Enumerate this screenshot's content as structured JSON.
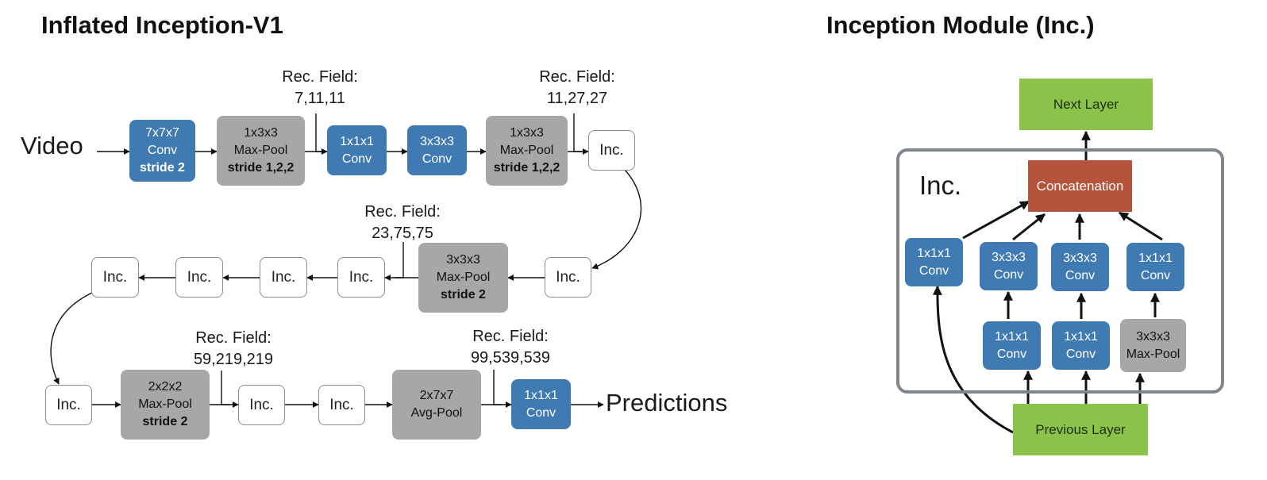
{
  "left": {
    "title": "Inflated Inception-V1",
    "input_label": "Video",
    "output_label": "Predictions",
    "row1": {
      "conv7": [
        "7x7x7",
        "Conv",
        "stride 2"
      ],
      "pool1": [
        "1x3x3",
        "Max-Pool",
        "stride 1,2,2"
      ],
      "conv1": [
        "1x1x1",
        "Conv"
      ],
      "conv3": [
        "3x3x3",
        "Conv"
      ],
      "pool2": [
        "1x3x3",
        "Max-Pool",
        "stride 1,2,2"
      ],
      "inc": "Inc."
    },
    "row2": {
      "inc_right": "Inc.",
      "pool3": [
        "3x3x3",
        "Max-Pool",
        "stride 2"
      ],
      "inc_chain": [
        "Inc.",
        "Inc.",
        "Inc.",
        "Inc."
      ]
    },
    "row3": {
      "inc_left": "Inc.",
      "pool4": [
        "2x2x2",
        "Max-Pool",
        "stride 2"
      ],
      "inc_a": "Inc.",
      "inc_b": "Inc.",
      "avgpool": [
        "2x7x7",
        "Avg-Pool"
      ],
      "conv_final": [
        "1x1x1",
        "Conv"
      ]
    },
    "rec_fields": {
      "rf1": [
        "Rec. Field:",
        "7,11,11"
      ],
      "rf2": [
        "Rec. Field:",
        "11,27,27"
      ],
      "rf3": [
        "Rec. Field:",
        "23,75,75"
      ],
      "rf4": [
        "Rec. Field:",
        "59,219,219"
      ],
      "rf5": [
        "Rec. Field:",
        "99,539,539"
      ]
    }
  },
  "right": {
    "title": "Inception Module (Inc.)",
    "next_layer": "Next Layer",
    "previous_layer": "Previous Layer",
    "concat": "Concatenation",
    "module_label": "Inc.",
    "top_row": [
      [
        "1x1x1",
        "Conv"
      ],
      [
        "3x3x3",
        "Conv"
      ],
      [
        "3x3x3",
        "Conv"
      ],
      [
        "1x1x1",
        "Conv"
      ]
    ],
    "bottom_row": [
      [
        "1x1x1",
        "Conv"
      ],
      [
        "1x1x1",
        "Conv"
      ],
      [
        "3x3x3",
        "Max-Pool"
      ]
    ]
  },
  "colors": {
    "conv_blue": "#3f7ab2",
    "pool_gray": "#a7a7a7",
    "layer_green": "#8bc34a",
    "concat_red": "#b5533b",
    "frame_gray": "#80848c"
  }
}
